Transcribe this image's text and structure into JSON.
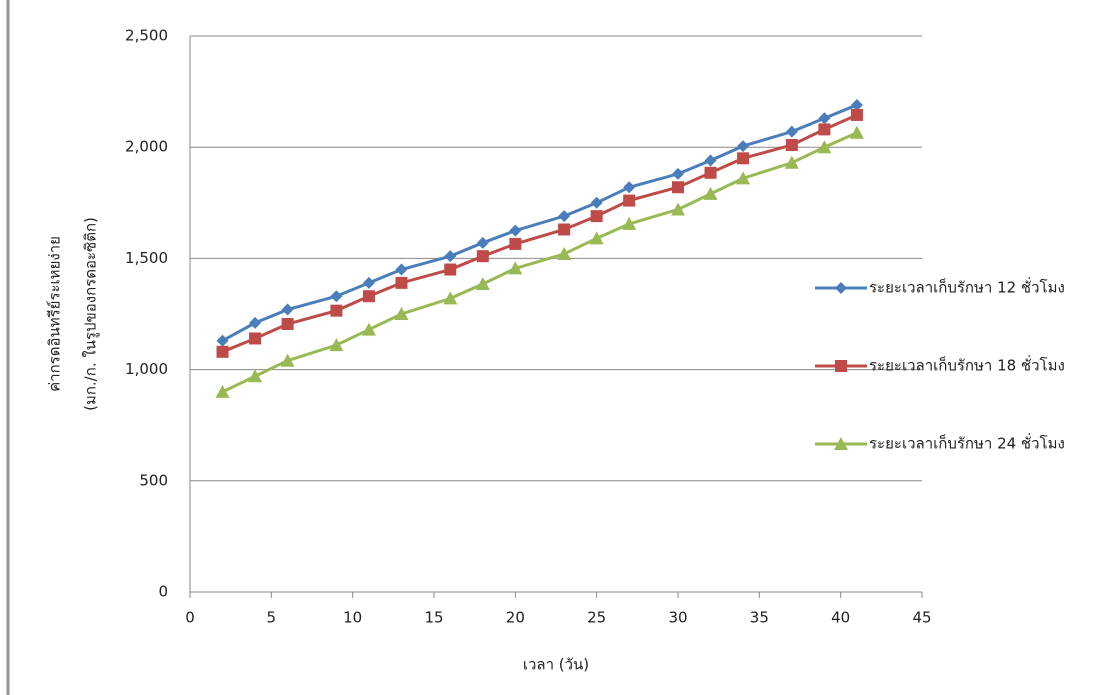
{
  "chart_data": {
    "type": "line",
    "xlabel": "เวลา (วัน)",
    "ylabel": [
      "ค่ากรดอินทรีย์ระเหยง่าย",
      "(มก./ก. ในรูปของกรดอะซิติก)"
    ],
    "x": [
      2,
      4,
      6,
      9,
      11,
      13,
      16,
      18,
      20,
      23,
      25,
      27,
      30,
      32,
      34,
      37,
      39,
      41
    ],
    "series": [
      {
        "name": "ระยะเวลาเก็บรักษา 12 ชั่วโมง",
        "color": "#4a7ebb",
        "marker": "diamond",
        "values": [
          1130,
          1210,
          1270,
          1330,
          1390,
          1450,
          1510,
          1570,
          1625,
          1690,
          1750,
          1820,
          1880,
          1940,
          2005,
          2070,
          2130,
          2190
        ]
      },
      {
        "name": "ระยะเวลาเก็บรักษา 18 ชั่วโมง",
        "color": "#be4b48",
        "marker": "square",
        "values": [
          1080,
          1140,
          1205,
          1265,
          1330,
          1390,
          1450,
          1510,
          1565,
          1630,
          1690,
          1760,
          1820,
          1885,
          1950,
          2010,
          2080,
          2145
        ]
      },
      {
        "name": "ระยะเวลาเก็บรักษา 24 ชั่วโมง",
        "color": "#98b954",
        "marker": "triangle",
        "values": [
          900,
          970,
          1040,
          1110,
          1180,
          1250,
          1320,
          1385,
          1455,
          1520,
          1590,
          1655,
          1720,
          1790,
          1860,
          1930,
          2000,
          2065
        ]
      }
    ],
    "xlim": [
      0,
      45
    ],
    "xticks": [
      0,
      5,
      10,
      15,
      20,
      25,
      30,
      35,
      40,
      45
    ],
    "ylim": [
      0,
      2500
    ],
    "yticks": [
      0,
      500,
      {
        "value": 1000,
        "label": "1,000"
      },
      {
        "value": 1500,
        "label": "1,500"
      },
      {
        "value": 2000,
        "label": "2,000"
      },
      {
        "value": 2500,
        "label": "2,500"
      }
    ],
    "grid": true,
    "legend": "right"
  }
}
